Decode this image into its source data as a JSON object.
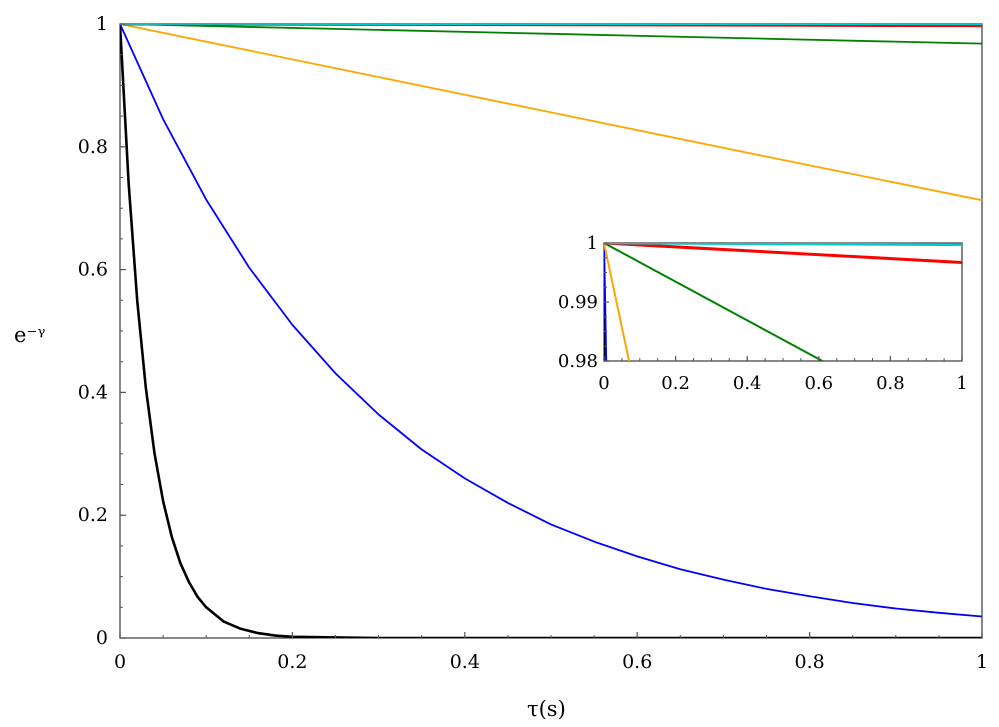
{
  "chart_data": [
    {
      "type": "line",
      "title": "",
      "xlabel": "τ(s)",
      "ylabel": "e⁻ᵞ",
      "xlim": [
        0,
        1
      ],
      "ylim": [
        0,
        1
      ],
      "x_ticks": [
        "0",
        "0.2",
        "0.4",
        "0.6",
        "0.8",
        "1"
      ],
      "y_ticks": [
        "0",
        "0.2",
        "0.4",
        "0.6",
        "0.8",
        "1"
      ],
      "grid": false,
      "legend": "none",
      "series": [
        {
          "color": "#000000",
          "x": [
            0,
            0.01,
            0.02,
            0.03,
            0.04,
            0.05,
            0.06,
            0.07,
            0.08,
            0.09,
            0.1,
            0.12,
            0.14,
            0.16,
            0.18,
            0.2,
            0.25,
            0.3,
            0.4,
            0.6,
            0.8,
            1.0
          ],
          "y": [
            1,
            0.741,
            0.549,
            0.407,
            0.301,
            0.223,
            0.165,
            0.122,
            0.091,
            0.067,
            0.05,
            0.027,
            0.015,
            0.008,
            0.004,
            0.002,
            0.001,
            0.0,
            0.0,
            0.0,
            0.0,
            0.0
          ]
        },
        {
          "color": "#0000ff",
          "x": [
            0,
            0.05,
            0.1,
            0.15,
            0.2,
            0.25,
            0.3,
            0.35,
            0.4,
            0.45,
            0.5,
            0.55,
            0.6,
            0.65,
            0.7,
            0.75,
            0.8,
            0.85,
            0.9,
            0.95,
            1.0
          ],
          "y": [
            1,
            0.845,
            0.714,
            0.603,
            0.51,
            0.431,
            0.364,
            0.307,
            0.26,
            0.22,
            0.185,
            0.157,
            0.133,
            0.112,
            0.095,
            0.08,
            0.068,
            0.057,
            0.048,
            0.041,
            0.035
          ]
        },
        {
          "color": "#ffa500",
          "x": [
            0,
            0.25,
            0.5,
            0.75,
            1.0
          ],
          "y": [
            1,
            0.928,
            0.856,
            0.784,
            0.713
          ]
        },
        {
          "color": "#008000",
          "x": [
            0,
            0.25,
            0.5,
            0.75,
            1.0
          ],
          "y": [
            1,
            0.992,
            0.984,
            0.976,
            0.968
          ]
        },
        {
          "color": "#ff0000",
          "x": [
            0,
            1.0
          ],
          "y": [
            1,
            0.997
          ]
        },
        {
          "color": "#00cccc",
          "x": [
            0,
            1.0
          ],
          "y": [
            1,
            0.9997
          ]
        }
      ]
    },
    {
      "type": "line",
      "title": "",
      "xlabel": "",
      "ylabel": "",
      "xlim": [
        0,
        1
      ],
      "ylim": [
        0.98,
        1
      ],
      "x_ticks": [
        "0",
        "0.2",
        "0.4",
        "0.6",
        "0.8",
        "1"
      ],
      "y_ticks": [
        "0.98",
        "0.99",
        "1"
      ],
      "grid": false,
      "legend": "none",
      "series": [
        {
          "color": "#000000",
          "x": [
            0,
            0.0004
          ],
          "y": [
            1,
            0.98
          ]
        },
        {
          "color": "#0000ff",
          "x": [
            0,
            0.006
          ],
          "y": [
            1,
            0.98
          ]
        },
        {
          "color": "#ffa500",
          "x": [
            0,
            0.07
          ],
          "y": [
            1,
            0.98
          ]
        },
        {
          "color": "#008000",
          "x": [
            0,
            0.61
          ],
          "y": [
            1,
            0.98
          ]
        },
        {
          "color": "#ff0000",
          "x": [
            0,
            1.0
          ],
          "y": [
            1,
            0.9967
          ]
        },
        {
          "color": "#00cccc",
          "x": [
            0,
            1.0
          ],
          "y": [
            1,
            0.9997
          ]
        }
      ]
    }
  ]
}
